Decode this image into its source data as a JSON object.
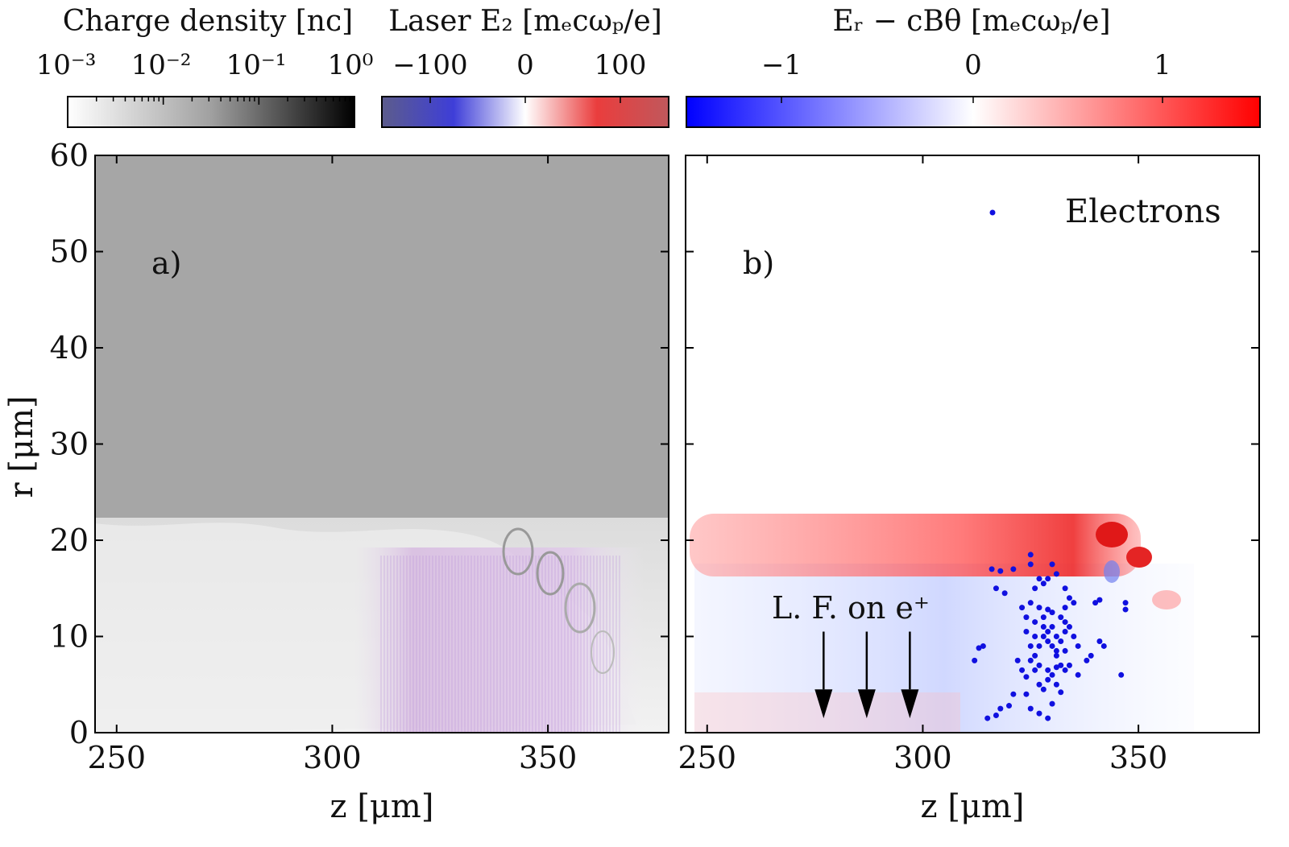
{
  "colorbars": [
    {
      "label": "Charge density [nᴄ]",
      "ticks": [
        "10⁻³",
        "10⁻²",
        "10⁻¹",
        "10⁰"
      ],
      "scale": "log",
      "range": [
        0.001,
        1
      ],
      "colors": [
        "#ffffff",
        "#000000"
      ]
    },
    {
      "label": "Laser E₂ [mₑcωₚ/e]",
      "ticks": [
        "−100",
        "0",
        "100"
      ],
      "range": [
        -150,
        150
      ],
      "colors": [
        "#5a5a8a",
        "#3b3bd9",
        "#ffffff",
        "#e83c3c",
        "#c05050"
      ]
    },
    {
      "label": "Eᵣ − cBθ [mₑcωₚ/e]",
      "ticks": [
        "−1",
        "0",
        "1"
      ],
      "range": [
        -1.5,
        1.5
      ],
      "colors": [
        "#0000ff",
        "#ffffff",
        "#ff0000"
      ]
    }
  ],
  "panel_a": {
    "tag": "a)"
  },
  "panel_b": {
    "tag": "b)",
    "legend_label": "Electrons",
    "annotation": "L. F. on e⁺"
  },
  "axes": {
    "xlabel": "z [μm]",
    "ylabel": "r [μm]",
    "x_ticks": [
      "250",
      "300",
      "350"
    ],
    "y_ticks": [
      "0",
      "10",
      "20",
      "30",
      "40",
      "50",
      "60"
    ]
  },
  "chart_data": [
    {
      "type": "heatmap",
      "panel": "a",
      "description_values": {
        "vacuum_region_r_above": 22.5,
        "laser_start_z": 312
      },
      "xlim": [
        245,
        378
      ],
      "ylim": [
        0,
        60
      ],
      "grid": false
    },
    {
      "type": "scatter",
      "panel": "b",
      "xlim": [
        245,
        378
      ],
      "ylim": [
        0,
        60
      ],
      "grid": false,
      "series": [
        {
          "name": "Electrons",
          "color": "#1010e0",
          "points": [
            [
              316,
              17
            ],
            [
              318,
              16.8
            ],
            [
              321,
              17
            ],
            [
              317,
              15
            ],
            [
              319,
              14.5
            ],
            [
              325,
              18.5
            ],
            [
              325,
              17.5
            ],
            [
              327,
              16
            ],
            [
              328,
              15.5
            ],
            [
              329,
              16
            ],
            [
              330,
              17.5
            ],
            [
              331,
              16.5
            ],
            [
              326,
              15
            ],
            [
              325,
              13.5
            ],
            [
              327,
              13
            ],
            [
              329,
              12.8
            ],
            [
              333,
              15
            ],
            [
              334,
              14
            ],
            [
              333,
              13
            ],
            [
              335,
              13.5
            ],
            [
              340,
              13.5
            ],
            [
              341,
              13.8
            ],
            [
              347,
              13.5
            ],
            [
              347,
              12.8
            ],
            [
              323,
              13
            ],
            [
              324,
              12
            ],
            [
              326,
              11.5
            ],
            [
              328,
              11
            ],
            [
              329,
              10.5
            ],
            [
              328,
              10
            ],
            [
              329,
              9.5
            ],
            [
              330,
              9
            ],
            [
              331,
              8.5
            ],
            [
              327,
              9
            ],
            [
              326,
              8
            ],
            [
              325,
              7.5
            ],
            [
              327,
              7
            ],
            [
              329,
              6.5
            ],
            [
              330,
              6
            ],
            [
              332,
              7
            ],
            [
              331,
              10
            ],
            [
              330,
              11
            ],
            [
              333,
              10.5
            ],
            [
              332,
              9.5
            ],
            [
              331,
              8
            ],
            [
              333,
              8.5
            ],
            [
              334,
              11
            ],
            [
              330,
              12.5
            ],
            [
              328,
              12
            ],
            [
              332,
              12
            ],
            [
              326,
              10
            ],
            [
              324,
              10.5
            ],
            [
              335,
              10
            ],
            [
              336,
              9
            ],
            [
              334,
              7
            ],
            [
              333,
              6.5
            ],
            [
              331,
              6.8
            ],
            [
              329,
              5.5
            ],
            [
              336,
              6
            ],
            [
              338,
              7.5
            ],
            [
              339,
              8
            ],
            [
              341,
              9.5
            ],
            [
              342,
              9
            ],
            [
              346,
              6
            ],
            [
              327,
              5
            ],
            [
              328,
              4.5
            ],
            [
              330,
              3
            ],
            [
              329,
              1.5
            ],
            [
              327,
              2
            ],
            [
              324,
              4
            ],
            [
              325,
              2.5
            ],
            [
              318,
              2.5
            ],
            [
              317,
              1.8
            ],
            [
              312,
              7.5
            ],
            [
              313,
              8.8
            ],
            [
              314,
              9
            ],
            [
              322,
              7.5
            ],
            [
              323,
              6.5
            ],
            [
              321,
              4
            ],
            [
              315,
              1.5
            ],
            [
              320,
              2.8
            ],
            [
              331,
              5
            ],
            [
              332,
              4.2
            ],
            [
              326,
              6.5
            ],
            [
              324,
              5.8
            ],
            [
              333,
              11.5
            ],
            [
              325,
              9
            ]
          ]
        }
      ],
      "arrows_z": [
        277,
        287,
        297
      ]
    }
  ]
}
